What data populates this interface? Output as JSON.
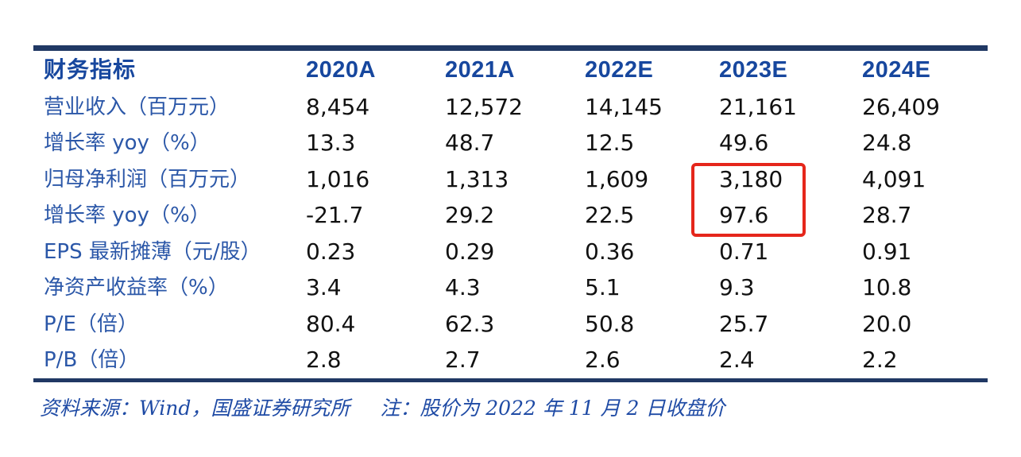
{
  "colors": {
    "rule_navy": "#203864",
    "header_blue": "#17479e",
    "label_blue": "#2b57a8",
    "value_black": "#111111",
    "highlight_red": "#e5261b",
    "footer_blue": "#1f4ba5"
  },
  "table": {
    "indicator_header": "财务指标",
    "columns": [
      "2020A",
      "2021A",
      "2022E",
      "2023E",
      "2024E"
    ],
    "rows": [
      {
        "label": "营业收入（百万元）",
        "values": [
          "8,454",
          "12,572",
          "14,145",
          "21,161",
          "26,409"
        ]
      },
      {
        "label": "增长率 yoy（%）",
        "values": [
          "13.3",
          "48.7",
          "12.5",
          "49.6",
          "24.8"
        ]
      },
      {
        "label": "归母净利润（百万元）",
        "values": [
          "1,016",
          "1,313",
          "1,609",
          "3,180",
          "4,091"
        ]
      },
      {
        "label": "增长率 yoy（%）",
        "values": [
          "-21.7",
          "29.2",
          "22.5",
          "97.6",
          "28.7"
        ]
      },
      {
        "label": "EPS 最新摊薄（元/股）",
        "values": [
          "0.23",
          "0.29",
          "0.36",
          "0.71",
          "0.91"
        ]
      },
      {
        "label": "净资产收益率（%）",
        "values": [
          "3.4",
          "4.3",
          "5.1",
          "9.3",
          "10.8"
        ]
      },
      {
        "label": "P/E（倍）",
        "values": [
          "80.4",
          "62.3",
          "50.8",
          "25.7",
          "20.0"
        ]
      },
      {
        "label": "P/B（倍）",
        "values": [
          "2.8",
          "2.7",
          "2.6",
          "2.4",
          "2.2"
        ]
      }
    ],
    "highlight": {
      "column": "2023E",
      "highlighted_values": [
        "3,180",
        "97.6"
      ],
      "highlighted_rows": [
        "归母净利润（百万元）",
        "增长率 yoy（%）"
      ]
    }
  },
  "footer": {
    "source": "资料来源：Wind，国盛证券研究所",
    "note": "注：股价为 2022 年 11 月 2 日收盘价"
  }
}
